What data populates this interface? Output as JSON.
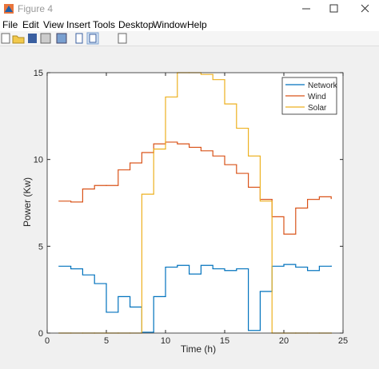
{
  "window": {
    "title": "Figure 4",
    "menu": [
      "File",
      "Edit",
      "View",
      "Insert",
      "Tools",
      "Desktop",
      "Window",
      "Help"
    ]
  },
  "chart_data": {
    "type": "stairs",
    "x_label": "Time (h)",
    "y_label": "Power (Kw)",
    "x": [
      1,
      2,
      3,
      4,
      5,
      6,
      7,
      8,
      9,
      10,
      11,
      12,
      13,
      14,
      15,
      16,
      17,
      18,
      19,
      20,
      21,
      22,
      23,
      24
    ],
    "series": [
      {
        "name": "Network",
        "color": "#0072bd",
        "values": [
          3.85,
          3.7,
          3.35,
          2.85,
          1.2,
          2.1,
          1.5,
          0.05,
          2.1,
          3.8,
          3.9,
          3.4,
          3.9,
          3.7,
          3.6,
          3.7,
          0.15,
          2.4,
          3.85,
          3.95,
          3.8,
          3.6,
          3.85,
          3.85
        ]
      },
      {
        "name": "Wind",
        "color": "#d95319",
        "values": [
          7.6,
          7.55,
          8.3,
          8.5,
          8.5,
          9.4,
          9.8,
          10.4,
          10.9,
          11.0,
          10.9,
          10.7,
          10.5,
          10.2,
          9.7,
          9.2,
          8.4,
          7.7,
          6.7,
          5.7,
          7.2,
          7.7,
          7.85,
          7.75
        ]
      },
      {
        "name": "Solar",
        "color": "#edb120",
        "values": [
          0,
          0,
          0,
          0,
          0,
          0,
          0,
          8.0,
          10.6,
          13.6,
          15,
          15,
          14.9,
          14.6,
          13.2,
          11.8,
          10.2,
          7.6,
          0,
          0,
          0,
          0,
          0,
          0
        ]
      }
    ],
    "xlim": [
      0,
      25
    ],
    "xticks": [
      0,
      5,
      10,
      15,
      20,
      25
    ],
    "ylim": [
      0,
      15
    ],
    "yticks": [
      0,
      5,
      10,
      15
    ],
    "grid": false,
    "legend": "northeast"
  }
}
